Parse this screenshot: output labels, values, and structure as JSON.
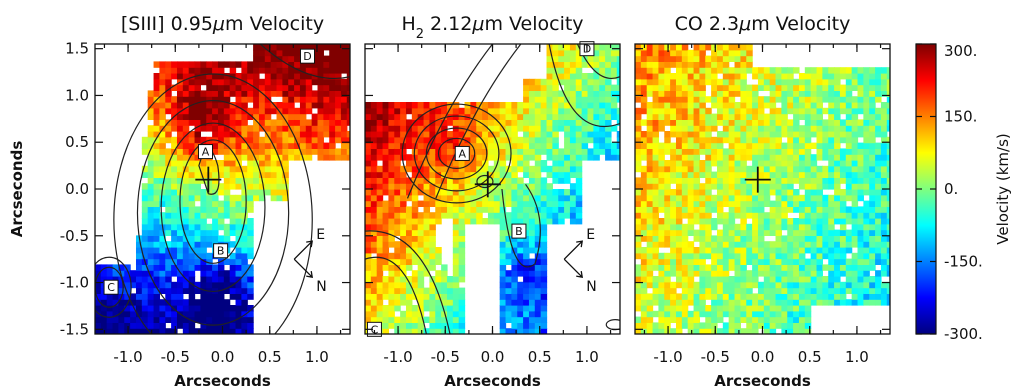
{
  "chart_data": {
    "type": "heatmap",
    "panels": [
      {
        "title_parts": [
          "[SIII] 0.95",
          "μ",
          "m Velocity"
        ],
        "region_labels": [
          {
            "text": "A",
            "x": -0.18,
            "y": 0.4
          },
          {
            "text": "B",
            "x": -0.02,
            "y": -0.66
          },
          {
            "text": "C",
            "x": -1.18,
            "y": -1.05
          },
          {
            "text": "D",
            "x": 0.9,
            "y": 1.42
          }
        ],
        "compass": [
          "E",
          "N"
        ],
        "center_mark": {
          "x": -0.15,
          "y": 0.1
        }
      },
      {
        "title_parts": [
          "H",
          "2",
          " 2.12",
          "μ",
          "m Velocity"
        ],
        "region_labels": [
          {
            "text": "A",
            "x": -0.32,
            "y": 0.38
          },
          {
            "text": "B",
            "x": 0.28,
            "y": -0.45
          },
          {
            "text": "C",
            "x": -1.25,
            "y": -1.5
          },
          {
            "text": "D",
            "x": 1.0,
            "y": 1.5
          }
        ],
        "compass": [
          "E",
          "N"
        ],
        "center_mark": {
          "x": -0.05,
          "y": 0.05
        }
      },
      {
        "title_parts": [
          "CO 2.3",
          "μ",
          "m Velocity"
        ],
        "region_labels": [],
        "compass": [],
        "center_mark": {
          "x": -0.05,
          "y": 0.1
        }
      }
    ],
    "xlabel": "Arcseconds",
    "ylabel": "Arcseconds",
    "xlim": [
      -1.35,
      1.35
    ],
    "ylim": [
      -1.55,
      1.55
    ],
    "x_ticks": [
      -1.0,
      -0.5,
      0.0,
      0.5,
      1.0
    ],
    "x_tick_labels": [
      "-1.0",
      "-0.5",
      "0.0",
      "0.5",
      "1.0"
    ],
    "y_ticks": [
      -1.5,
      -1.0,
      -0.5,
      0.0,
      0.5,
      1.0,
      1.5
    ],
    "y_tick_labels": [
      "-1.5",
      "-1.0",
      "-0.5",
      "0.0",
      "0.5",
      "1.0",
      "1.5"
    ],
    "colorbar": {
      "label": "Velocity (km/s)",
      "range": [
        -300,
        300
      ],
      "ticks": [
        300,
        150,
        0,
        -150,
        -300
      ],
      "tick_labels": [
        "300.",
        "150.",
        "0.",
        "-150.",
        "-300."
      ],
      "colormap": "jet"
    }
  }
}
